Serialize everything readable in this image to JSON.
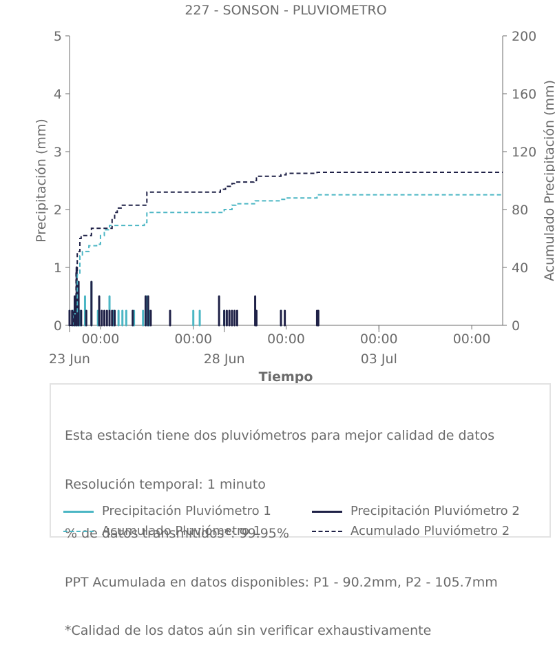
{
  "colors": {
    "p1": "#4bb6c4",
    "p2": "#1f2147",
    "axis": "#6b6b6b",
    "text": "#6b6b6b"
  },
  "info": {
    "lines": [
      "Esta estación tiene dos pluviómetros para mejor calidad de datos",
      "Resolución temporal: 1 minuto",
      "% de datos transmitidos*: 99.95%",
      "PPT Acumulada en datos disponibles: P1 - 90.2mm, P2 - 105.7mm",
      "*Calidad de los datos aún sin verificar exhaustivamente"
    ]
  },
  "legend": {
    "p1_precip": "Precipitación Pluviómetro 1",
    "p2_precip": "Precipitación Pluviómetro 2",
    "p1_accum": "Acumulado Pluviómetro 1",
    "p2_accum": "Acumulado Pluviómetro 2"
  },
  "chart_data": {
    "type": "line",
    "title": "227 - SONSON - PLUVIOMETRO",
    "xlabel": "Tiempo",
    "ylabel": "Precipitación (mm)",
    "y2label": "Acumulado Precipitación (mm)",
    "x_unit": "days",
    "x_range": [
      "2024-06-23 00:00",
      "2024-07-07 00:00"
    ],
    "ylim": [
      0,
      5
    ],
    "y2lim": [
      0,
      200
    ],
    "yticks": [
      0,
      1,
      2,
      3,
      4,
      5
    ],
    "y2ticks": [
      0,
      40,
      80,
      120,
      160,
      200
    ],
    "xticks": [
      {
        "day": "2024-06-24",
        "label": "00:00"
      },
      {
        "day": "2024-06-27",
        "label": "00:00"
      },
      {
        "day": "2024-06-30",
        "label": "00:00"
      },
      {
        "day": "2024-07-03",
        "label": "00:00"
      },
      {
        "day": "2024-07-06",
        "label": "00:00"
      }
    ],
    "date_labels": [
      {
        "day": "2024-06-23",
        "label": "23 Jun"
      },
      {
        "day": "2024-06-28",
        "label": "28 Jun"
      },
      {
        "day": "2024-07-03",
        "label": "03 Jul"
      }
    ],
    "grid": false,
    "legend_position": "below",
    "series": [
      {
        "name": "Precipitación Pluviómetro 1",
        "axis": "left",
        "style": "bars",
        "points": [
          [
            "2024-06-23 00:00",
            0.25
          ],
          [
            "2024-06-23 03:00",
            0.25
          ],
          [
            "2024-06-23 05:00",
            0.5
          ],
          [
            "2024-06-23 06:00",
            0.75
          ],
          [
            "2024-06-23 08:00",
            0.25
          ],
          [
            "2024-06-23 12:00",
            0.5
          ],
          [
            "2024-06-23 17:00",
            0.75
          ],
          [
            "2024-06-23 22:00",
            0.25
          ],
          [
            "2024-06-24 07:00",
            0.5
          ],
          [
            "2024-06-24 10:00",
            0.25
          ],
          [
            "2024-06-24 14:00",
            0.25
          ],
          [
            "2024-06-24 17:00",
            0.25
          ],
          [
            "2024-06-24 20:00",
            0.25
          ],
          [
            "2024-06-25 02:00",
            0.25
          ],
          [
            "2024-06-25 09:00",
            0.25
          ],
          [
            "2024-06-25 12:00",
            0.5
          ],
          [
            "2024-06-25 14:00",
            0.25
          ],
          [
            "2024-06-27 00:00",
            0.25
          ],
          [
            "2024-06-27 05:00",
            0.25
          ],
          [
            "2024-06-28 00:00",
            0.25
          ],
          [
            "2024-06-29 20:00",
            0.25
          ]
        ]
      },
      {
        "name": "Precipitación Pluviómetro 2",
        "axis": "left",
        "style": "bars",
        "points": [
          [
            "2024-06-23 00:00",
            0.25
          ],
          [
            "2024-06-23 02:00",
            0.25
          ],
          [
            "2024-06-23 04:00",
            0.5
          ],
          [
            "2024-06-23 05:30",
            1.0
          ],
          [
            "2024-06-23 07:00",
            0.75
          ],
          [
            "2024-06-23 09:00",
            0.25
          ],
          [
            "2024-06-23 13:00",
            0.25
          ],
          [
            "2024-06-23 17:00",
            0.75
          ],
          [
            "2024-06-23 23:00",
            0.5
          ],
          [
            "2024-06-24 01:00",
            0.25
          ],
          [
            "2024-06-24 03:00",
            0.25
          ],
          [
            "2024-06-24 05:00",
            0.25
          ],
          [
            "2024-06-24 07:00",
            0.25
          ],
          [
            "2024-06-24 09:00",
            0.25
          ],
          [
            "2024-06-24 11:00",
            0.25
          ],
          [
            "2024-06-25 01:00",
            0.25
          ],
          [
            "2024-06-25 11:00",
            0.5
          ],
          [
            "2024-06-25 13:00",
            0.5
          ],
          [
            "2024-06-25 15:00",
            0.25
          ],
          [
            "2024-06-26 06:00",
            0.25
          ],
          [
            "2024-06-27 20:00",
            0.5
          ],
          [
            "2024-06-28 00:00",
            0.25
          ],
          [
            "2024-06-28 02:00",
            0.25
          ],
          [
            "2024-06-28 04:00",
            0.25
          ],
          [
            "2024-06-28 06:00",
            0.25
          ],
          [
            "2024-06-28 08:00",
            0.25
          ],
          [
            "2024-06-28 10:00",
            0.25
          ],
          [
            "2024-06-29 00:00",
            0.5
          ],
          [
            "2024-06-29 01:00",
            0.25
          ],
          [
            "2024-06-29 20:00",
            0.25
          ],
          [
            "2024-06-29 23:00",
            0.25
          ],
          [
            "2024-07-01 00:00",
            0.25
          ],
          [
            "2024-07-01 01:00",
            0.25
          ]
        ]
      },
      {
        "name": "Acumulado Pluviómetro 1",
        "axis": "right",
        "style": "step-dashed",
        "points": [
          [
            "2024-06-23 00:00",
            0
          ],
          [
            "2024-06-23 03:00",
            8
          ],
          [
            "2024-06-23 06:00",
            35
          ],
          [
            "2024-06-23 08:00",
            48
          ],
          [
            "2024-06-23 10:00",
            51
          ],
          [
            "2024-06-23 14:00",
            51
          ],
          [
            "2024-06-23 15:00",
            55
          ],
          [
            "2024-06-23 21:00",
            56
          ],
          [
            "2024-06-24 00:00",
            62
          ],
          [
            "2024-06-24 03:00",
            66
          ],
          [
            "2024-06-24 07:00",
            69
          ],
          [
            "2024-06-25 10:00",
            71
          ],
          [
            "2024-06-25 12:00",
            78
          ],
          [
            "2024-06-27 22:00",
            78
          ],
          [
            "2024-06-28 00:00",
            80
          ],
          [
            "2024-06-28 06:00",
            83
          ],
          [
            "2024-06-28 09:00",
            84
          ],
          [
            "2024-06-29 00:00",
            86
          ],
          [
            "2024-06-29 20:00",
            87
          ],
          [
            "2024-06-30 00:00",
            88
          ],
          [
            "2024-07-01 00:00",
            90.2
          ],
          [
            "2024-07-07 00:00",
            90.2
          ]
        ]
      },
      {
        "name": "Acumulado Pluviómetro 2",
        "axis": "right",
        "style": "step-dashed",
        "points": [
          [
            "2024-06-23 00:00",
            0
          ],
          [
            "2024-06-23 03:00",
            10
          ],
          [
            "2024-06-23 05:00",
            38
          ],
          [
            "2024-06-23 06:00",
            51
          ],
          [
            "2024-06-23 08:00",
            60
          ],
          [
            "2024-06-23 09:00",
            62
          ],
          [
            "2024-06-23 16:00",
            62
          ],
          [
            "2024-06-23 17:00",
            67
          ],
          [
            "2024-06-24 08:00",
            67
          ],
          [
            "2024-06-24 09:00",
            74
          ],
          [
            "2024-06-24 11:00",
            78
          ],
          [
            "2024-06-24 13:00",
            81
          ],
          [
            "2024-06-24 16:00",
            83
          ],
          [
            "2024-06-25 10:00",
            83
          ],
          [
            "2024-06-25 12:00",
            92
          ],
          [
            "2024-06-27 18:00",
            92
          ],
          [
            "2024-06-27 21:00",
            94
          ],
          [
            "2024-06-28 01:00",
            96
          ],
          [
            "2024-06-28 06:00",
            98
          ],
          [
            "2024-06-28 08:00",
            99
          ],
          [
            "2024-06-28 23:00",
            100
          ],
          [
            "2024-06-29 01:00",
            103
          ],
          [
            "2024-06-29 20:00",
            104
          ],
          [
            "2024-06-30 00:00",
            105
          ],
          [
            "2024-07-01 00:00",
            105.7
          ],
          [
            "2024-07-07 00:00",
            105.7
          ]
        ]
      }
    ]
  }
}
